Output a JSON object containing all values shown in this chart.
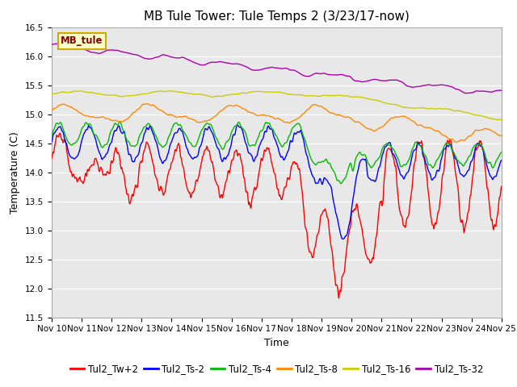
{
  "title": "MB Tule Tower: Tule Temps 2 (3/23/17-now)",
  "xlabel": "Time",
  "ylabel": "Temperature (C)",
  "ylim": [
    11.5,
    16.5
  ],
  "xlim": [
    0,
    15
  ],
  "x_tick_labels": [
    "Nov 10",
    "Nov 11",
    "Nov 12",
    "Nov 13",
    "Nov 14",
    "Nov 15",
    "Nov 16",
    "Nov 17",
    "Nov 18",
    "Nov 19",
    "Nov 20",
    "Nov 21",
    "Nov 22",
    "Nov 23",
    "Nov 24",
    "Nov 25"
  ],
  "legend_labels": [
    "Tul2_Tw+2",
    "Tul2_Ts-2",
    "Tul2_Ts-4",
    "Tul2_Ts-8",
    "Tul2_Ts-16",
    "Tul2_Ts-32"
  ],
  "line_colors": [
    "#ff0000",
    "#0000ff",
    "#00bb00",
    "#ff8800",
    "#cccc00",
    "#aa00aa"
  ],
  "background_color": "#e8e8e8",
  "grid_color": "#ffffff",
  "watermark_text": "MB_tule",
  "watermark_bg": "#ffffcc",
  "watermark_border": "#ccaa00",
  "watermark_color": "#880000",
  "title_fontsize": 11,
  "axis_fontsize": 9,
  "tick_fontsize": 7.5,
  "legend_fontsize": 8.5
}
